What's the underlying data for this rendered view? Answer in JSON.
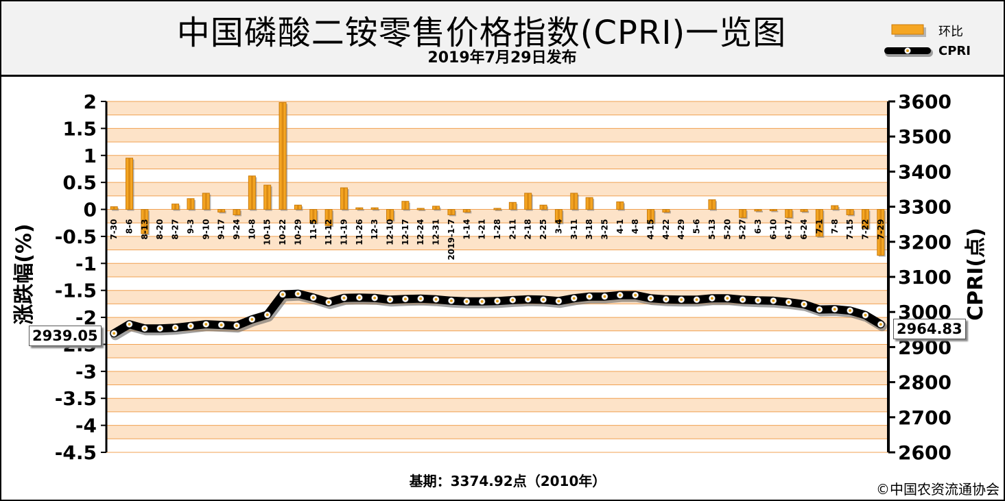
{
  "header": {
    "title": "中国磷酸二铵零售价格指数(CPRI)一览图",
    "subtitle": "2019年7月29日发布"
  },
  "legend": {
    "bar_label": "环比",
    "line_label": "CPRI"
  },
  "footer": {
    "base_period": "基期：3374.92点（2010年）",
    "copyright": "©中国农资流通协会"
  },
  "callouts": {
    "first_value": "2939.05",
    "last_value": "2964.83"
  },
  "colors": {
    "bar_fill": "#f5a623",
    "bar_edge": "#c97a0a",
    "band_light": "#fde3c8",
    "grid_orange": "#f0a050",
    "line_black": "#000000",
    "marker_fill": "#ffffff",
    "marker_dot": "#e0a020",
    "header_bg": "#f2f2f2"
  },
  "chart_data": {
    "type": "bar+line",
    "left_axis_label": "涨跌幅(%)",
    "right_axis_label": "CPRI(点)",
    "left_ylim": [
      -4.5,
      2
    ],
    "left_ticks": [
      "2",
      "1.5",
      "1",
      "0.5",
      "0",
      "-0.5",
      "-1",
      "-1.5",
      "-2",
      "-2.5",
      "-3",
      "-3.5",
      "-4",
      "-4.5"
    ],
    "right_ylim": [
      2600,
      3600
    ],
    "right_ticks": [
      "3600",
      "3500",
      "3400",
      "3300",
      "3200",
      "3100",
      "3000",
      "2900",
      "2800",
      "2700",
      "2600"
    ],
    "grid": true,
    "categories": [
      "7-30",
      "8-6",
      "8-13",
      "8-20",
      "8-27",
      "9-3",
      "9-10",
      "9-17",
      "9-24",
      "10-8",
      "10-15",
      "10-22",
      "10-29",
      "11-5",
      "11-12",
      "11-19",
      "11-26",
      "12-3",
      "12-10",
      "12-17",
      "12-24",
      "12-31",
      "2019-1-7",
      "1-14",
      "1-21",
      "1-28",
      "2-11",
      "2-18",
      "2-25",
      "3-4",
      "3-11",
      "3-18",
      "3-25",
      "4-1",
      "4-8",
      "4-15",
      "4-22",
      "4-29",
      "5-6",
      "5-13",
      "5-20",
      "5-27",
      "6-3",
      "6-10",
      "6-17",
      "6-24",
      "7-1",
      "7-8",
      "7-15",
      "7-22",
      "7-29"
    ],
    "series": [
      {
        "name": "环比",
        "kind": "bar",
        "axis": "left",
        "values": [
          0.05,
          0.95,
          -0.45,
          0,
          0.1,
          0.2,
          0.3,
          -0.05,
          -0.1,
          0.62,
          0.45,
          1.98,
          0.08,
          -0.25,
          -0.3,
          0.4,
          0.03,
          0.03,
          -0.2,
          0.15,
          0.02,
          0.06,
          -0.1,
          -0.05,
          0,
          0.02,
          0.13,
          0.3,
          0.08,
          -0.25,
          0.3,
          0.22,
          0,
          0.14,
          0,
          -0.25,
          -0.05,
          0,
          0,
          0.18,
          0,
          -0.15,
          -0.03,
          -0.02,
          -0.15,
          -0.04,
          -0.5,
          0.07,
          -0.1,
          -0.35,
          -0.85
        ]
      },
      {
        "name": "CPRI",
        "kind": "line",
        "axis": "right",
        "values": [
          2939.05,
          2965,
          2953,
          2953,
          2955,
          2960,
          2965,
          2963,
          2961,
          2979,
          2992,
          3050,
          3052,
          3041,
          3028,
          3040,
          3041,
          3040,
          3035,
          3037,
          3038,
          3036,
          3032,
          3030,
          3030,
          3031,
          3034,
          3036,
          3035,
          3031,
          3039,
          3044,
          3044,
          3048,
          3048,
          3039,
          3036,
          3035,
          3035,
          3039,
          3039,
          3035,
          3033,
          3032,
          3028,
          3022,
          3007,
          3008,
          3004,
          2991,
          2964.83
        ]
      }
    ]
  }
}
